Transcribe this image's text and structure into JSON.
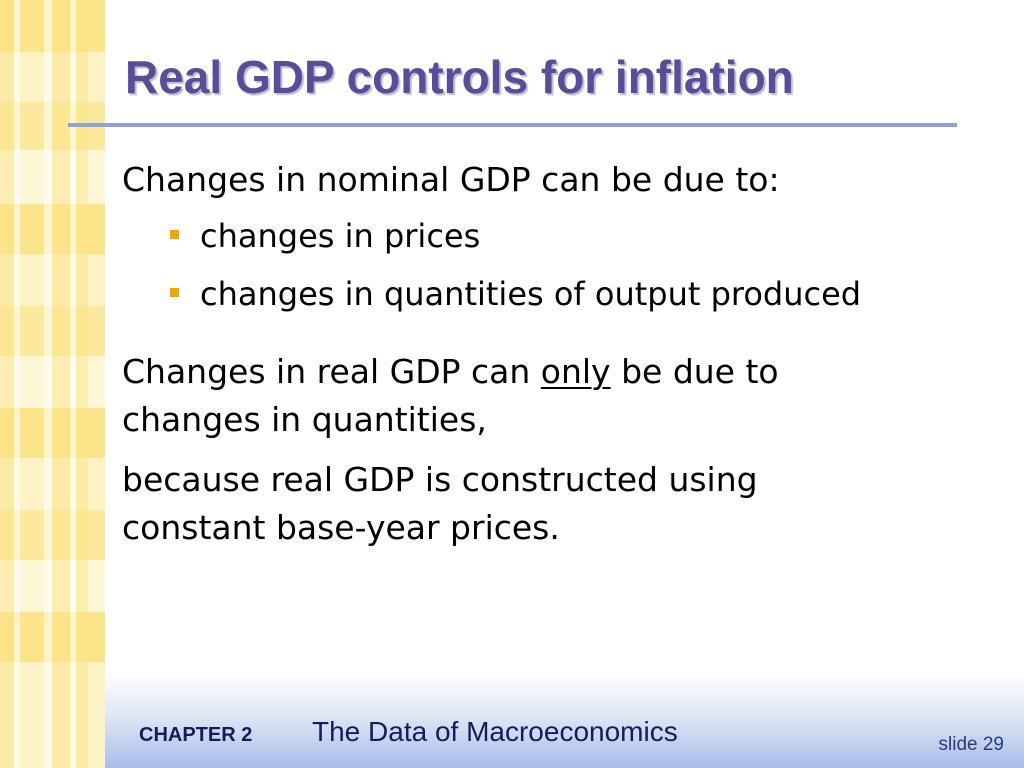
{
  "slide": {
    "title": "Real GDP controls for inflation",
    "para1": "Changes in nominal GDP can be due to:",
    "bullets": [
      "changes in prices",
      "changes in quantities of output produced"
    ],
    "para2_before": "Changes in real GDP can ",
    "para2_emph": "only",
    "para2_after": " be due to changes in quantities,",
    "para3": "because real GDP is constructed using constant base-year prices."
  },
  "footer": {
    "chapter_label": "CHAPTER 2",
    "chapter_title": "The Data of Macroeconomics",
    "slide_number": "slide 29"
  },
  "colors": {
    "title": "#5b4c9a",
    "rule": "#8aa3dc",
    "bullet": "#f5a400",
    "strip": "#fbe38a"
  }
}
